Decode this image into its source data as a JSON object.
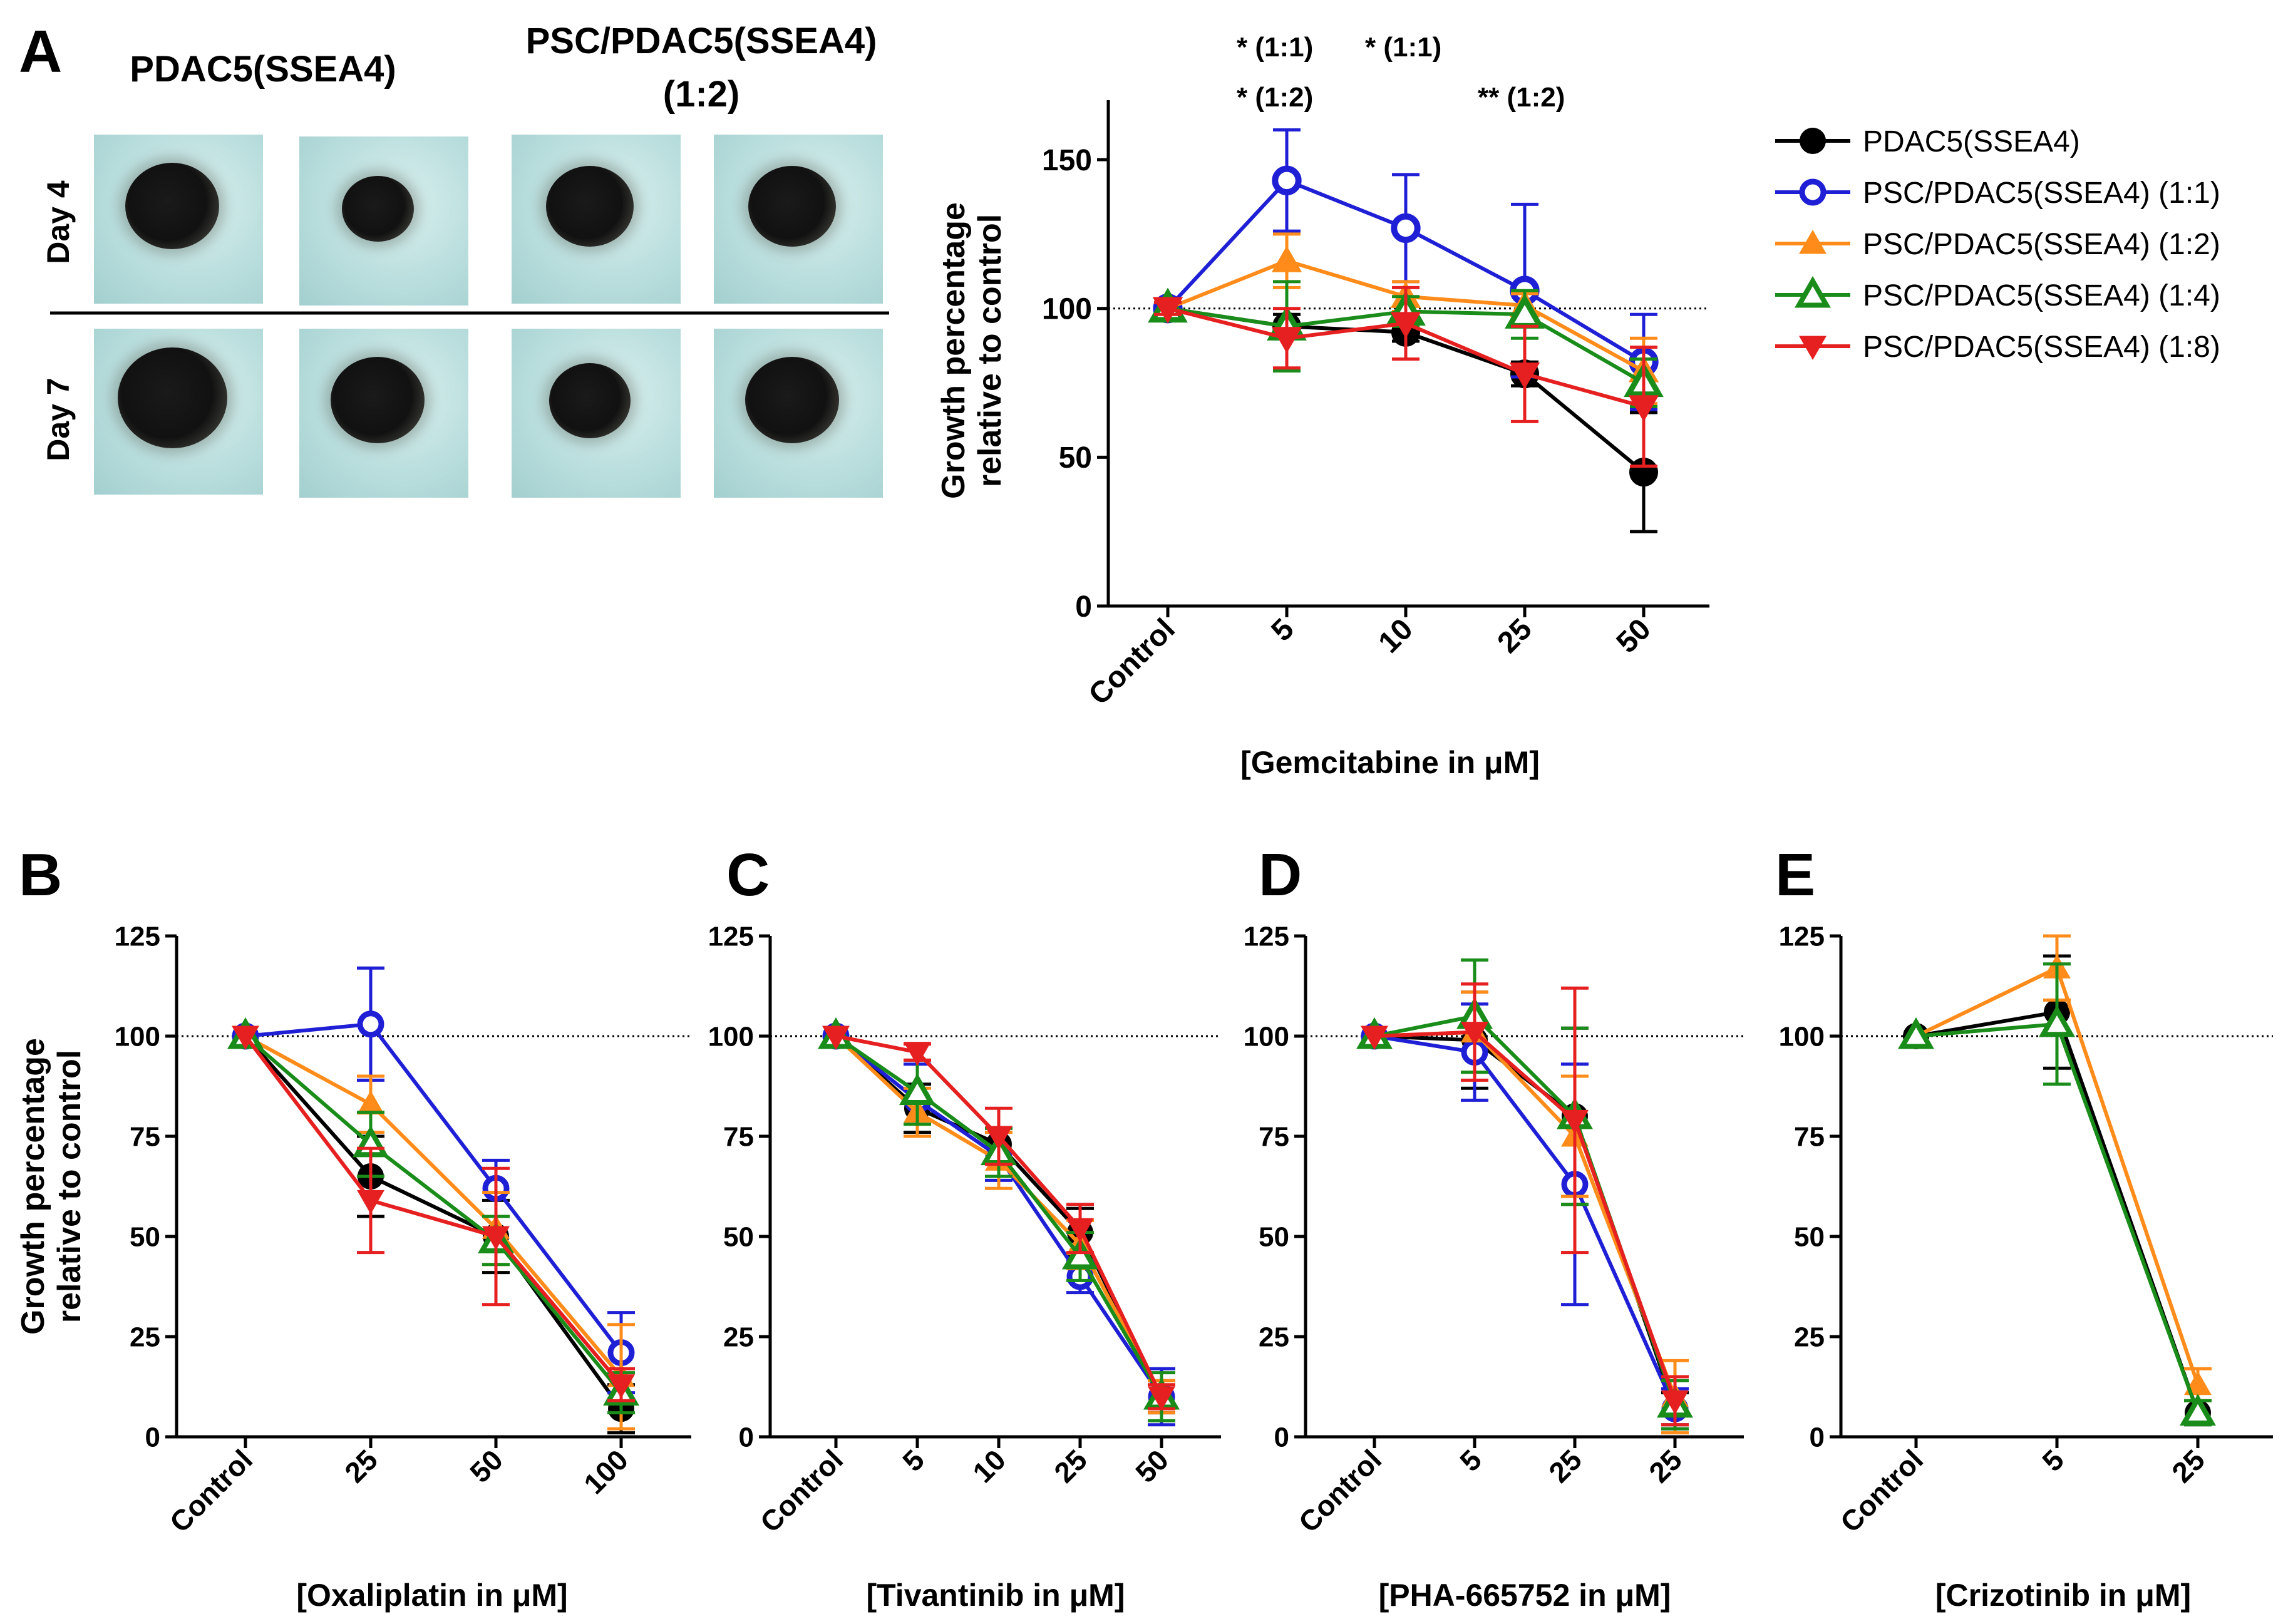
{
  "panelA": {
    "letter": "A",
    "photo_headers": [
      "PDAC5(SSEA4)",
      "PSC/PDAC5(SSEA4)",
      "(1:2)"
    ],
    "row_labels": [
      "Day 4",
      "Day 7"
    ],
    "significance": [
      "* (1:1)",
      "* (1:1)",
      "* (1:2)",
      "** (1:2)"
    ]
  },
  "legend": {
    "entries": [
      {
        "name": "PDAC5(SSEA4)",
        "color": "#000000",
        "marker": "filled-circle"
      },
      {
        "name": "PSC/PDAC5(SSEA4) (1:1)",
        "color": "#1f1fd6",
        "marker": "open-circle"
      },
      {
        "name": "PSC/PDAC5(SSEA4) (1:2)",
        "color": "#ff8c1a",
        "marker": "filled-triangle-up"
      },
      {
        "name": "PSC/PDAC5(SSEA4) (1:4)",
        "color": "#1a8c1a",
        "marker": "open-triangle-up"
      },
      {
        "name": "PSC/PDAC5(SSEA4) (1:8)",
        "color": "#e62020",
        "marker": "filled-triangle-down"
      }
    ]
  },
  "chart_data": [
    {
      "id": "A",
      "type": "line",
      "categories": [
        "Control",
        "5",
        "10",
        "25",
        "50"
      ],
      "xlabel": "[Gemcitabine in μM]",
      "ylabel": [
        "Growth percentage",
        "relative to control"
      ],
      "ylim": [
        0,
        170
      ],
      "yticks": [
        0,
        50,
        100,
        150
      ],
      "reference_line": 100,
      "series": [
        {
          "name": "PDAC5(SSEA4)",
          "values": [
            100,
            94,
            92,
            78,
            45
          ],
          "errors": [
            2,
            4,
            3,
            4,
            20
          ]
        },
        {
          "name": "PSC/PDAC5(SSEA4) (1:1)",
          "values": [
            100,
            143,
            127,
            106,
            82
          ],
          "errors": [
            2,
            17,
            18,
            29,
            16
          ]
        },
        {
          "name": "PSC/PDAC5(SSEA4) (1:2)",
          "values": [
            100,
            116,
            104,
            101,
            79
          ],
          "errors": [
            2,
            9,
            5,
            4,
            11
          ]
        },
        {
          "name": "PSC/PDAC5(SSEA4) (1:4)",
          "values": [
            100,
            94,
            99,
            98,
            75
          ],
          "errors": [
            2,
            15,
            5,
            8,
            8
          ]
        },
        {
          "name": "PSC/PDAC5(SSEA4) (1:8)",
          "values": [
            100,
            90,
            95,
            78,
            67
          ],
          "errors": [
            2,
            10,
            12,
            16,
            20
          ]
        }
      ]
    },
    {
      "id": "B",
      "type": "line",
      "categories": [
        "Control",
        "25",
        "50",
        "100"
      ],
      "xlabel": "[Oxaliplatin in μM]",
      "ylabel": [
        "Growth percentage",
        "relative to control"
      ],
      "ylim": [
        0,
        125
      ],
      "yticks": [
        0,
        25,
        50,
        75,
        100,
        125
      ],
      "reference_line": 100,
      "series": [
        {
          "name": "PDAC5(SSEA4)",
          "values": [
            100,
            65,
            50,
            7
          ],
          "errors": [
            1,
            10,
            9,
            6
          ]
        },
        {
          "name": "PSC/PDAC5(SSEA4) (1:1)",
          "values": [
            100,
            103,
            62,
            21
          ],
          "errors": [
            1,
            14,
            7,
            10
          ]
        },
        {
          "name": "PSC/PDAC5(SSEA4) (1:2)",
          "values": [
            100,
            83,
            52,
            15
          ],
          "errors": [
            1,
            7,
            9,
            13
          ]
        },
        {
          "name": "PSC/PDAC5(SSEA4) (1:4)",
          "values": [
            100,
            73,
            49,
            11
          ],
          "errors": [
            1,
            8,
            6,
            5
          ]
        },
        {
          "name": "PSC/PDAC5(SSEA4) (1:8)",
          "values": [
            100,
            59,
            50,
            13
          ],
          "errors": [
            1,
            13,
            17,
            4
          ]
        }
      ]
    },
    {
      "id": "C",
      "type": "line",
      "categories": [
        "Control",
        "5",
        "10",
        "25",
        "50"
      ],
      "xlabel": "[Tivantinib in μM]",
      "ylabel": [],
      "ylim": [
        0,
        125
      ],
      "yticks": [
        0,
        25,
        50,
        75,
        100,
        125
      ],
      "reference_line": 100,
      "series": [
        {
          "name": "PDAC5(SSEA4)",
          "values": [
            100,
            82,
            73,
            51,
            10
          ],
          "errors": [
            1,
            6,
            4,
            6,
            4
          ]
        },
        {
          "name": "PSC/PDAC5(SSEA4) (1:1)",
          "values": [
            100,
            84,
            70,
            40,
            10
          ],
          "errors": [
            1,
            9,
            6,
            4,
            7
          ]
        },
        {
          "name": "PSC/PDAC5(SSEA4) (1:2)",
          "values": [
            100,
            81,
            69,
            48,
            10
          ],
          "errors": [
            1,
            6,
            7,
            6,
            4
          ]
        },
        {
          "name": "PSC/PDAC5(SSEA4) (1:4)",
          "values": [
            100,
            86,
            71,
            45,
            10
          ],
          "errors": [
            1,
            8,
            6,
            6,
            6
          ]
        },
        {
          "name": "PSC/PDAC5(SSEA4) (1:8)",
          "values": [
            100,
            96,
            75,
            52,
            10
          ],
          "errors": [
            1,
            2,
            7,
            6,
            3
          ]
        }
      ]
    },
    {
      "id": "D",
      "type": "line",
      "categories": [
        "Control",
        "5",
        "25",
        "25"
      ],
      "xlabel": "[PHA-665752 in μM]",
      "ylabel": [],
      "ylim": [
        0,
        125
      ],
      "yticks": [
        0,
        25,
        50,
        75,
        100,
        125
      ],
      "reference_line": 100,
      "series": [
        {
          "name": "PDAC5(SSEA4)",
          "values": [
            100,
            99,
            80,
            7
          ],
          "errors": [
            1,
            12,
            22,
            4
          ]
        },
        {
          "name": "PSC/PDAC5(SSEA4) (1:1)",
          "values": [
            100,
            96,
            63,
            7
          ],
          "errors": [
            1,
            12,
            30,
            5
          ]
        },
        {
          "name": "PSC/PDAC5(SSEA4) (1:2)",
          "values": [
            100,
            101,
            75,
            10
          ],
          "errors": [
            1,
            10,
            15,
            9
          ]
        },
        {
          "name": "PSC/PDAC5(SSEA4) (1:4)",
          "values": [
            100,
            105,
            80,
            8
          ],
          "errors": [
            1,
            14,
            22,
            6
          ]
        },
        {
          "name": "PSC/PDAC5(SSEA4) (1:8)",
          "values": [
            100,
            101,
            79,
            9
          ],
          "errors": [
            1,
            12,
            33,
            6
          ]
        }
      ]
    },
    {
      "id": "E",
      "type": "line",
      "categories": [
        "Control",
        "5",
        "25"
      ],
      "xlabel": "[Crizotinib in μM]",
      "ylabel": [],
      "ylim": [
        0,
        125
      ],
      "yticks": [
        0,
        25,
        50,
        75,
        100,
        125
      ],
      "reference_line": 100,
      "series": [
        {
          "name": "PDAC5(SSEA4)",
          "values": [
            100,
            106,
            6
          ],
          "errors": [
            1,
            14,
            3
          ]
        },
        {
          "name": "PSC/PDAC5(SSEA4) (1:2)",
          "values": [
            100,
            117,
            13
          ],
          "errors": [
            1,
            8,
            4
          ]
        },
        {
          "name": "PSC/PDAC5(SSEA4) (1:4)",
          "values": [
            100,
            103,
            6
          ],
          "errors": [
            1,
            15,
            3
          ]
        }
      ]
    }
  ]
}
